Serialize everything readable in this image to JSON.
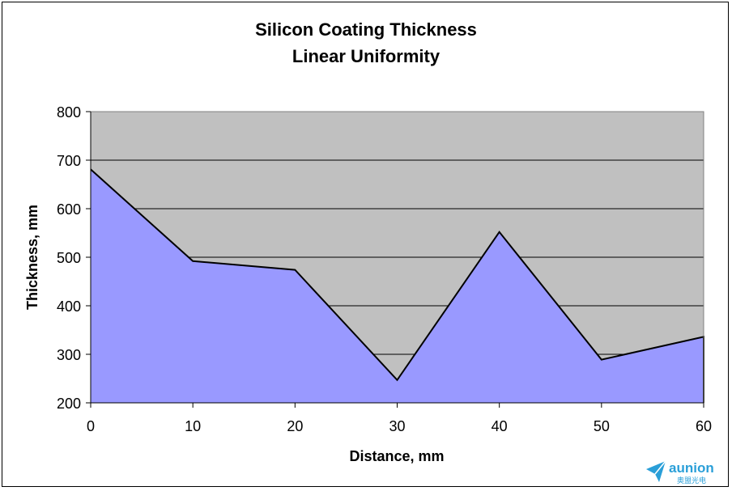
{
  "chart_data": {
    "type": "area",
    "title_lines": [
      "Silicon Coating  Thickness",
      "Linear Uniformity"
    ],
    "xlabel": "Distance, mm",
    "ylabel": "Thickness, mm",
    "x": [
      0,
      10,
      20,
      30,
      40,
      50,
      60
    ],
    "values": [
      681,
      492,
      474,
      247,
      552,
      289,
      336
    ],
    "xlim": [
      0,
      60
    ],
    "ylim": [
      200,
      800
    ],
    "x_ticks": [
      "0",
      "10",
      "20",
      "30",
      "40",
      "50",
      "60"
    ],
    "y_ticks": [
      "200",
      "300",
      "400",
      "500",
      "600",
      "700",
      "800"
    ],
    "grid": true,
    "legend": "none",
    "colors": {
      "area_fill": "#9999ff",
      "plot_bg": "#c0c0c0",
      "line": "#000000"
    }
  },
  "watermark": {
    "brand": "aunion",
    "subtitle": "奥盟光电",
    "color": "#2a9fd8"
  }
}
